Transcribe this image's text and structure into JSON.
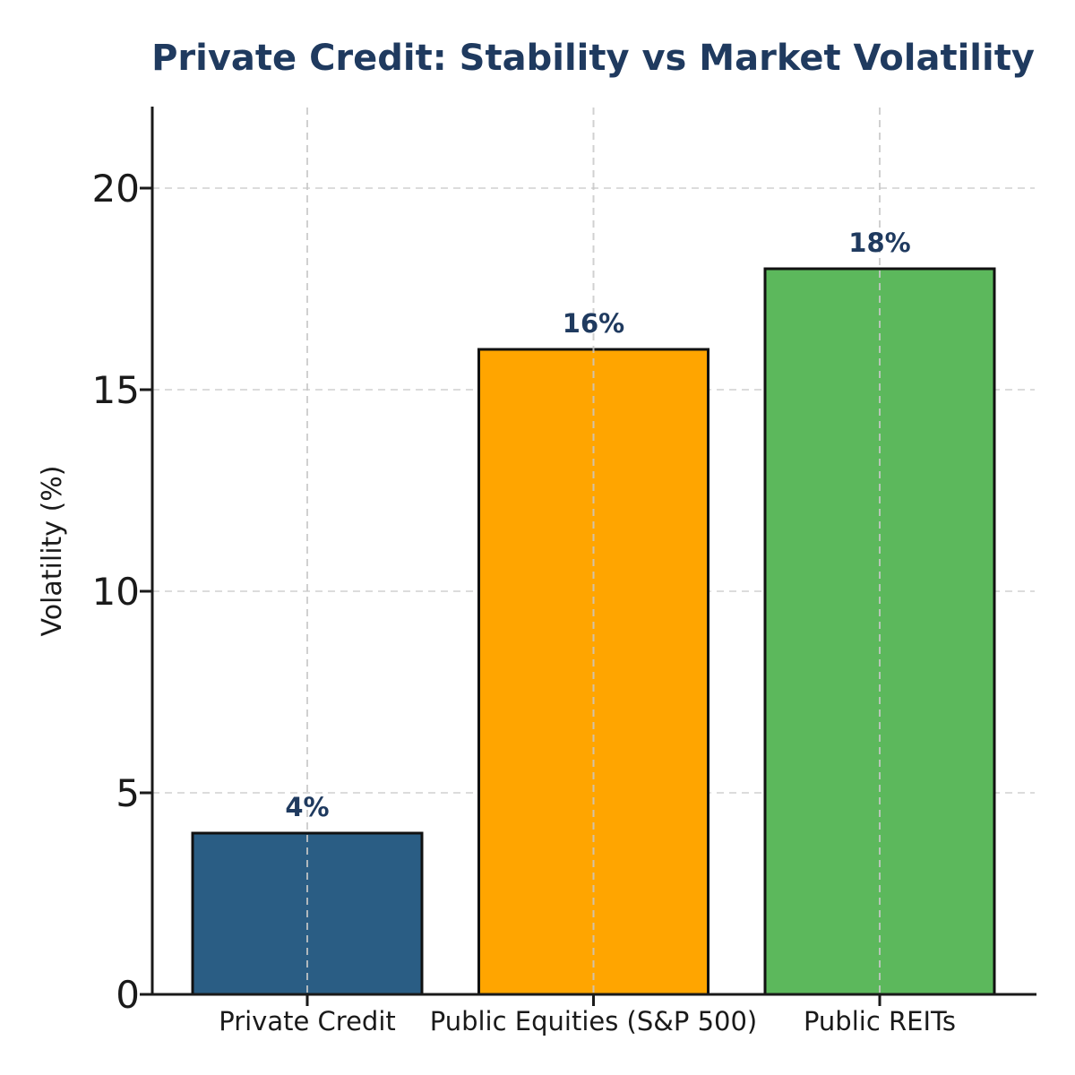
{
  "chart_data": {
    "type": "bar",
    "title": "Private Credit: Stability vs Market Volatility",
    "xlabel": "",
    "ylabel": "Volatility (%)",
    "categories": [
      "Private Credit",
      "Public Equities (S&P 500)",
      "Public REITs"
    ],
    "values": [
      4,
      16,
      18
    ],
    "data_labels": [
      "4%",
      "16%",
      "18%"
    ],
    "colors": [
      "#2a5d84",
      "#ffa500",
      "#5cb85c"
    ],
    "ylim": [
      0,
      22
    ],
    "yticks": [
      0,
      5,
      10,
      15,
      20
    ],
    "ytick_labels": [
      "0",
      "5",
      "10",
      "15",
      "20"
    ],
    "grid": true,
    "legend": "none"
  }
}
